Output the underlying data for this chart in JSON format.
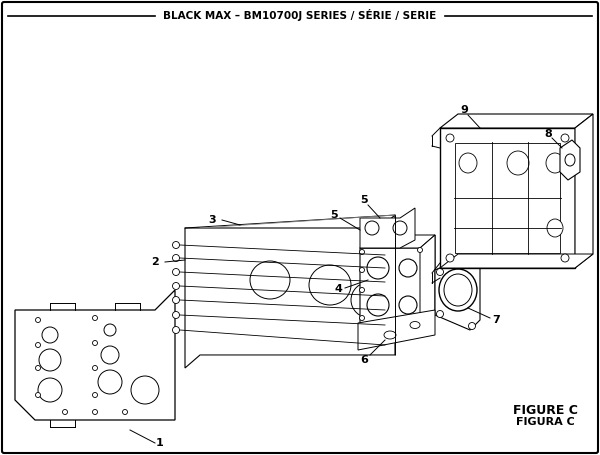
{
  "title": "BLACK MAX – BM10700J SERIES / SÉRIE / SERIE",
  "figure_label": "FIGURE C",
  "figura_label": "FIGURA C",
  "bg_color": "#ffffff",
  "lc": "#000000",
  "lw": 0.7,
  "figsize": [
    6.0,
    4.55
  ],
  "dpi": 100
}
